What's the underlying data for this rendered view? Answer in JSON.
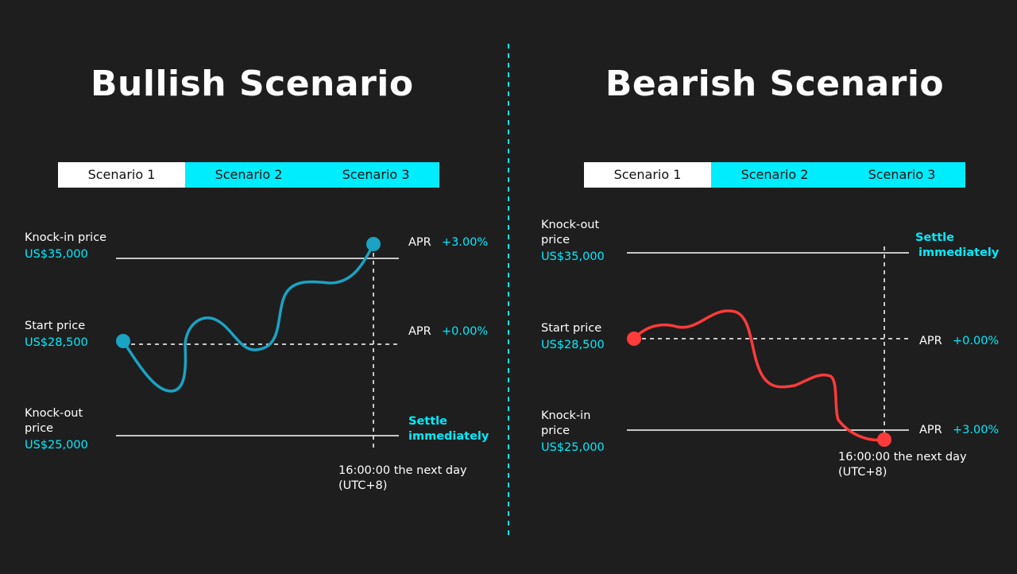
{
  "bullish": {
    "title": "Bullish Scenario",
    "tabs": [
      "Scenario 1",
      "Scenario 2",
      "Scenario 3"
    ],
    "active_tab": "Scenario 1",
    "knock_in": {
      "label": "Knock-in price",
      "value": "US$35,000"
    },
    "start": {
      "label": "Start price",
      "value": "US$28,500"
    },
    "knock_out": {
      "label": "Knock-out price",
      "label_line1": "Knock-out",
      "label_line2": "price",
      "value": "US$25,000"
    },
    "apr_top": {
      "label": "APR",
      "value": "+3.00%"
    },
    "apr_mid": {
      "label": "APR",
      "value": "+0.00%"
    },
    "settle": {
      "line1": "Settle",
      "line2": "immediately"
    },
    "time": {
      "line1": "16:00:00 the next day",
      "line2": "(UTC+8)"
    },
    "line_color": "#1aa3c3"
  },
  "bearish": {
    "title": "Bearish Scenario",
    "tabs": [
      "Scenario 1",
      "Scenario 2",
      "Scenario 3"
    ],
    "active_tab": "Scenario 1",
    "knock_out": {
      "label": "Knock-out price",
      "label_line1": "Knock-out",
      "label_line2": "price",
      "value": "US$35,000"
    },
    "start": {
      "label": "Start price",
      "value": "US$28,500"
    },
    "knock_in": {
      "label": "Knock-in price",
      "label_line1": "Knock-in",
      "label_line2": "price",
      "value": "US$25,000"
    },
    "settle": {
      "line1": "Settle",
      "line2": "immediately"
    },
    "apr_mid": {
      "label": "APR",
      "value": "+0.00%"
    },
    "apr_bottom": {
      "label": "APR",
      "value": "+3.00%"
    },
    "time": {
      "line1": "16:00:00 the next day",
      "line2": "(UTC+8)"
    },
    "line_color": "#ff3b3b"
  },
  "colors": {
    "background": "#1e1e1e",
    "accent": "#00ecff",
    "text": "#ffffff",
    "divider": "#00ecff"
  }
}
